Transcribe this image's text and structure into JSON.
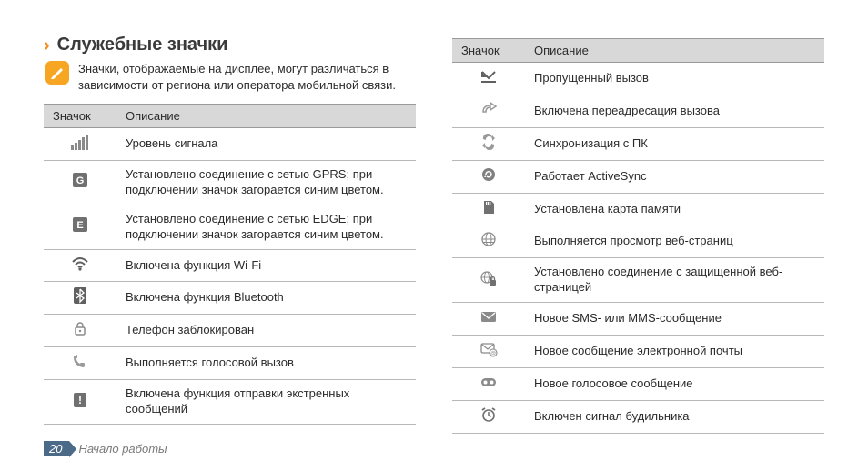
{
  "heading": "Служебные значки",
  "note": "Значки, отображаемые на дисплее, могут различаться в зависимости от региона или оператора мобильной связи.",
  "columns": {
    "icon": "Значок",
    "desc": "Описание"
  },
  "left_rows": [
    {
      "icon": "signal-icon",
      "desc": "Уровень сигнала"
    },
    {
      "icon": "gprs-icon",
      "desc": "Установлено соединение с сетью GPRS; при подключении значок загорается синим цветом."
    },
    {
      "icon": "edge-icon",
      "desc": "Установлено соединение с сетью EDGE; при подключении значок загорается синим цветом."
    },
    {
      "icon": "wifi-icon",
      "desc": "Включена функция Wi-Fi"
    },
    {
      "icon": "bluetooth-icon",
      "desc": "Включена функция Bluetooth"
    },
    {
      "icon": "lock-icon",
      "desc": "Телефон заблокирован"
    },
    {
      "icon": "call-icon",
      "desc": "Выполняется голосовой вызов"
    },
    {
      "icon": "sos-icon",
      "desc": "Включена функция отправки экстренных сообщений"
    }
  ],
  "right_rows": [
    {
      "icon": "missed-call-icon",
      "desc": "Пропущенный вызов"
    },
    {
      "icon": "forward-icon",
      "desc": "Включена переадресация вызова"
    },
    {
      "icon": "sync-pc-icon",
      "desc": "Синхронизация с ПК"
    },
    {
      "icon": "activesync-icon",
      "desc": "Работает ActiveSync"
    },
    {
      "icon": "sdcard-icon",
      "desc": "Установлена карта памяти"
    },
    {
      "icon": "browse-icon",
      "desc": "Выполняется просмотр веб-страниц"
    },
    {
      "icon": "secure-web-icon",
      "desc": "Установлено соединение с защищенной веб-страницей"
    },
    {
      "icon": "sms-icon",
      "desc": "Новое SMS- или MMS-сообщение"
    },
    {
      "icon": "email-icon",
      "desc": "Новое сообщение электронной почты"
    },
    {
      "icon": "voicemail-icon",
      "desc": "Новое голосовое сообщение"
    },
    {
      "icon": "alarm-icon",
      "desc": "Включен сигнал будильника"
    }
  ],
  "footer": {
    "page_number": "20",
    "section": "Начало работы"
  },
  "colors": {
    "accent_orange": "#f28c1a",
    "header_band": "#d8d8d8",
    "row_border": "#b8b8b8",
    "pagebox": "#4a6a88",
    "icon_gray": "#8a8a8a",
    "icon_dark": "#606060"
  }
}
